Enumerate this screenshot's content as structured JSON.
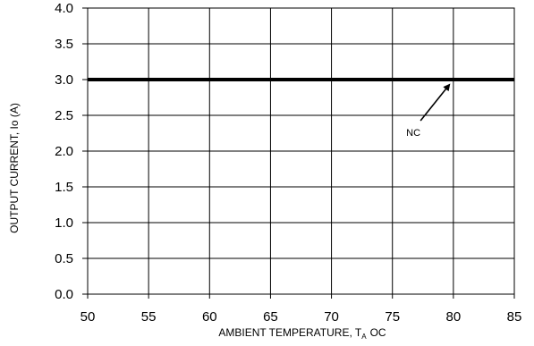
{
  "chart_data": {
    "type": "line",
    "title": "",
    "xlabel": "AMBIENT TEMPERATURE, T",
    "xlabel_subscript": "A",
    "xlabel_unit": "OC",
    "ylabel": "OUTPUT CURRENT, Io  (A)",
    "xlim": [
      50,
      85
    ],
    "ylim": [
      0.0,
      4.0
    ],
    "xticks": [
      "50",
      "55",
      "60",
      "65",
      "70",
      "75",
      "80",
      "85"
    ],
    "yticks": [
      "0.0",
      "0.5",
      "1.0",
      "1.5",
      "2.0",
      "2.5",
      "3.0",
      "3.5",
      "4.0"
    ],
    "grid": true,
    "series": [
      {
        "x": [
          50,
          85
        ],
        "y": [
          3.0,
          3.0
        ],
        "color": "#000000"
      }
    ],
    "annotations": [
      {
        "text": "NC",
        "x_data": 79.8,
        "y_data": 3.0
      }
    ]
  }
}
